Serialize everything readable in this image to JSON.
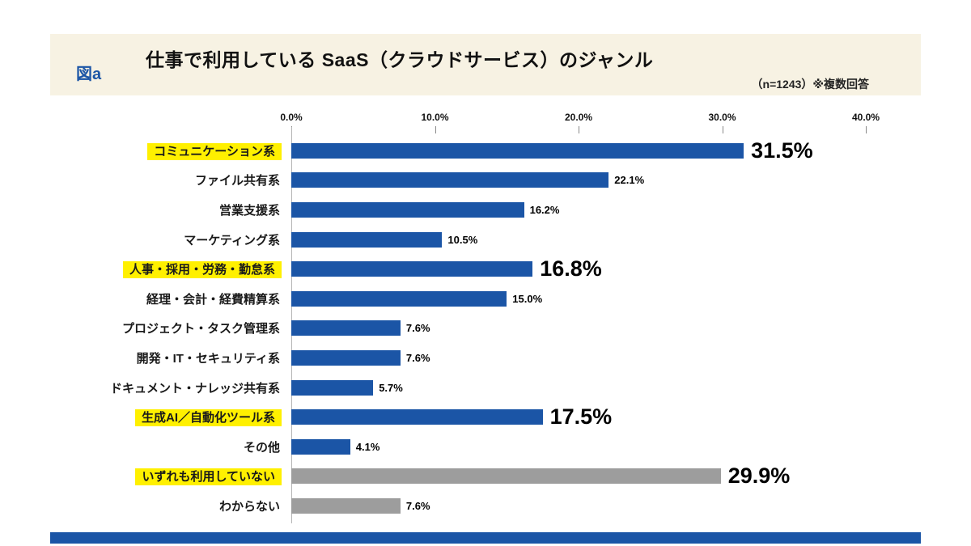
{
  "header": {
    "figure_label": "図a",
    "title": "仕事で利用している SaaS（クラウドサービス）のジャンル",
    "note": "（n=1243）※複数回答"
  },
  "chart_data": {
    "type": "bar",
    "orientation": "horizontal",
    "title": "仕事で利用している SaaS（クラウドサービス）のジャンル",
    "xlim": [
      0,
      40
    ],
    "x_ticks": [
      "0.0%",
      "10.0%",
      "20.0%",
      "30.0%",
      "40.0%"
    ],
    "grid": false,
    "legend": false,
    "categories": [
      "コミュニケーション系",
      "ファイル共有系",
      "営業支援系",
      "マーケティング系",
      "人事・採用・労務・勤怠系",
      "経理・会計・経費精算系",
      "プロジェクト・タスク管理系",
      "開発・IT・セキュリティ系",
      "ドキュメント・ナレッジ共有系",
      "生成AI／自動化ツール系",
      "その他",
      "いずれも利用していない",
      "わからない"
    ],
    "values": [
      31.5,
      22.1,
      16.2,
      10.5,
      16.8,
      15.0,
      7.6,
      7.6,
      5.7,
      17.5,
      4.1,
      29.9,
      7.6
    ],
    "highlighted_labels": [
      true,
      false,
      false,
      false,
      true,
      false,
      false,
      false,
      false,
      true,
      false,
      true,
      false
    ],
    "emphasized_values": [
      true,
      false,
      false,
      false,
      true,
      false,
      false,
      false,
      false,
      true,
      false,
      true,
      false
    ],
    "bar_colors": [
      "blue",
      "blue",
      "blue",
      "blue",
      "blue",
      "blue",
      "blue",
      "blue",
      "blue",
      "blue",
      "blue",
      "gray",
      "gray"
    ],
    "colors": {
      "blue": "#1b55a6",
      "gray": "#9d9d9d",
      "highlight": "#fff000",
      "header_bg": "#f7f2e3",
      "accent": "#1b55a6"
    }
  }
}
